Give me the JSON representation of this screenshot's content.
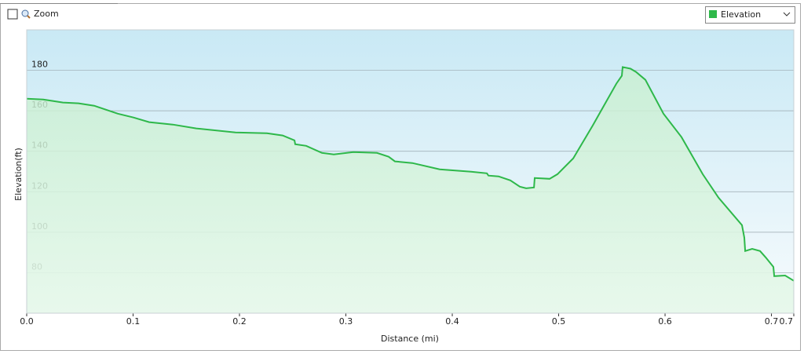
{
  "ui": {
    "zoom_label": "Zoom"
  },
  "chart_data": {
    "type": "area-line",
    "x_label": "Distance  (mi)",
    "y_label": "Elevation(ft)",
    "x": [
      0,
      0.0155,
      0.034,
      0.0487,
      0.0635,
      0.0856,
      0.1004,
      0.1151,
      0.1373,
      0.1594,
      0.1963,
      0.2258,
      0.2406,
      0.2517,
      0.2524,
      0.2627,
      0.2775,
      0.2886,
      0.307,
      0.3292,
      0.3402,
      0.3461,
      0.3624,
      0.3882,
      0.4177,
      0.4325,
      0.434,
      0.4435,
      0.4546,
      0.4635,
      0.4694,
      0.4768,
      0.4775,
      0.4915,
      0.4989,
      0.5137,
      0.5321,
      0.5542,
      0.5594,
      0.5601,
      0.5675,
      0.5727,
      0.5815,
      0.5985,
      0.6155,
      0.6354,
      0.6502,
      0.6723,
      0.6745,
      0.6753,
      0.6819,
      0.6893,
      0.6945,
      0.7018,
      0.7026,
      0.7129,
      0.721
    ],
    "series": [
      {
        "name": "Elevation",
        "color": "#2eb84a",
        "values": [
          166,
          165.6,
          164.1,
          163.7,
          162.5,
          158.6,
          156.7,
          154.4,
          153.2,
          151.3,
          149.3,
          148.9,
          147.8,
          145.4,
          143.5,
          142.7,
          139.2,
          138.4,
          139.6,
          139.2,
          137.3,
          135,
          134.2,
          131.1,
          129.9,
          129.1,
          128,
          127.6,
          125.6,
          122.5,
          121.7,
          122.1,
          126.8,
          126.4,
          128.7,
          136.5,
          152.8,
          173.4,
          177.3,
          181.6,
          180.8,
          179.2,
          175.3,
          158.6,
          147,
          128.7,
          117.1,
          103.5,
          97.3,
          90.7,
          91.8,
          90.7,
          87.6,
          82.9,
          78.3,
          78.6,
          76
        ]
      }
    ],
    "xlim": [
      0,
      0.721
    ],
    "xticks": [
      {
        "value": 0,
        "label": "0.0"
      },
      0.1,
      0.2,
      0.3,
      0.4,
      0.5,
      0.6,
      0.7,
      {
        "value": 0.721,
        "label": "0.7"
      }
    ],
    "ylim": [
      60,
      200
    ],
    "yticks": [
      80,
      100,
      120,
      140,
      160,
      180
    ],
    "grid": true
  }
}
